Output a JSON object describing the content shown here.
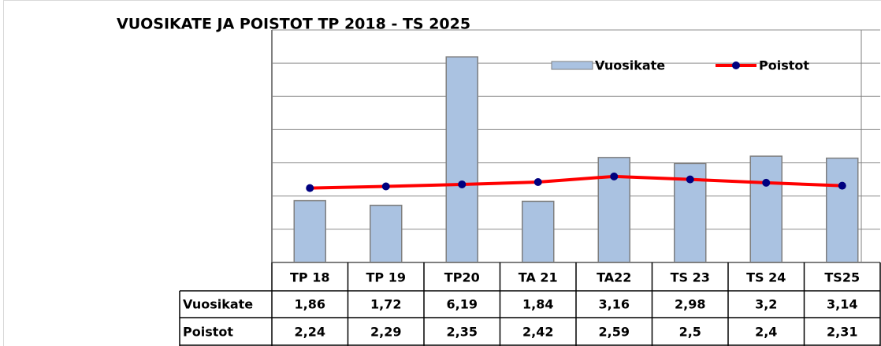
{
  "chart_data": {
    "type": "bar_line",
    "title": "VUOSIKATE JA POISTOT   TP 2018 - TS 2025",
    "categories": [
      "TP 18",
      "TP 19",
      "TP20",
      "TA 21",
      "TA22",
      "TS 23",
      "TS 24",
      "TS25"
    ],
    "series": [
      {
        "name": "Vuosikate",
        "type": "bar",
        "color": "#aac2e1",
        "values": [
          1.86,
          1.72,
          6.19,
          1.84,
          3.16,
          2.98,
          3.2,
          3.14
        ],
        "value_labels": [
          "1,86",
          "1,72",
          "6,19",
          "1,84",
          "3,16",
          "2,98",
          "3,2",
          "3,14"
        ]
      },
      {
        "name": "Poistot",
        "type": "line",
        "color": "#ff0000",
        "marker_color": "#00007f",
        "values": [
          2.24,
          2.29,
          2.35,
          2.42,
          2.59,
          2.5,
          2.4,
          2.31
        ],
        "value_labels": [
          "2,24",
          "2,29",
          "2,35",
          "2,42",
          "2,59",
          "2,5",
          "2,4",
          "2,31"
        ]
      }
    ],
    "ylim": [
      0,
      7
    ],
    "yticks": [
      0,
      1,
      2,
      3,
      4,
      5,
      6,
      7
    ],
    "grid": true,
    "legend": "top-right"
  }
}
